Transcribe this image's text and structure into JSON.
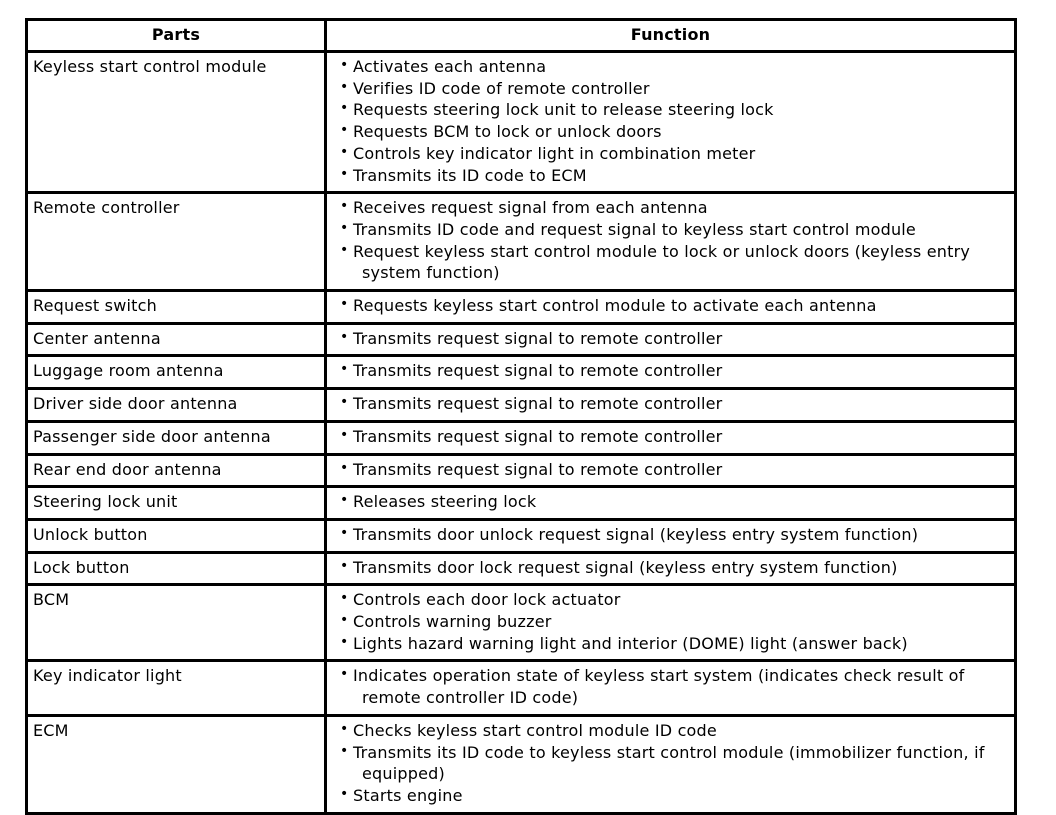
{
  "colors": {
    "border": "#000000",
    "background": "#ffffff",
    "text": "#000000"
  },
  "table": {
    "headers": {
      "parts": "Parts",
      "function": "Function"
    },
    "bullet_glyph": "•",
    "rows": [
      {
        "part": "Keyless start control module",
        "functions": [
          "Activates each antenna",
          "Verifies ID code of remote controller",
          "Requests steering lock unit to release steering lock",
          "Requests BCM to lock or unlock doors",
          "Controls key indicator light in combination meter",
          "Transmits its ID code to ECM"
        ]
      },
      {
        "part": "Remote controller",
        "functions": [
          "Receives request signal from each antenna",
          "Transmits ID code and request signal to keyless start control module",
          "Request keyless start control module to lock or unlock doors (keyless entry system function)"
        ]
      },
      {
        "part": "Request switch",
        "functions": [
          "Requests keyless start control module to activate each antenna"
        ]
      },
      {
        "part": "Center antenna",
        "functions": [
          "Transmits request signal to remote controller"
        ]
      },
      {
        "part": "Luggage room antenna",
        "functions": [
          "Transmits request signal to remote controller"
        ]
      },
      {
        "part": "Driver side door antenna",
        "functions": [
          "Transmits request signal to remote controller"
        ]
      },
      {
        "part": "Passenger side door antenna",
        "functions": [
          "Transmits request signal to remote controller"
        ]
      },
      {
        "part": "Rear end door antenna",
        "functions": [
          "Transmits request signal to remote controller"
        ]
      },
      {
        "part": "Steering lock unit",
        "functions": [
          "Releases steering lock"
        ]
      },
      {
        "part": "Unlock button",
        "functions": [
          "Transmits door unlock request signal (keyless entry system function)"
        ]
      },
      {
        "part": "Lock button",
        "functions": [
          "Transmits door lock request signal (keyless entry system function)"
        ]
      },
      {
        "part": "BCM",
        "functions": [
          "Controls each door lock actuator",
          "Controls warning buzzer",
          "Lights hazard warning light and interior (DOME) light (answer back)"
        ]
      },
      {
        "part": "Key indicator light",
        "functions": [
          "Indicates operation state of keyless start system (indicates check result of remote controller ID code)"
        ]
      },
      {
        "part": "ECM",
        "functions": [
          "Checks keyless start control module ID code",
          "Transmits its ID code to keyless start control module (immobilizer function, if equipped)",
          "Starts engine"
        ]
      }
    ]
  }
}
